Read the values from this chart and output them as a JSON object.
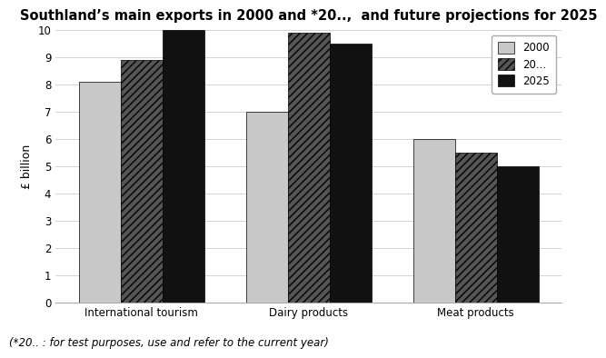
{
  "title": "Southland’s main exports in 2000 and *20..,  and future projections for 2025",
  "categories": [
    "International tourism",
    "Dairy products",
    "Meat products"
  ],
  "series": {
    "2000": [
      8.1,
      7.0,
      6.0
    ],
    "20...": [
      8.9,
      9.9,
      5.5
    ],
    "2025": [
      10.0,
      9.5,
      5.0
    ]
  },
  "legend_labels": [
    "2000",
    "20...",
    "2025"
  ],
  "ylabel": "£ billion",
  "ylim": [
    0,
    10
  ],
  "yticks": [
    0,
    1,
    2,
    3,
    4,
    5,
    6,
    7,
    8,
    9,
    10
  ],
  "footnote": "(*20.. : for test purposes, use and refer to the current year)",
  "bar_colors": [
    "#c8c8c8",
    "#555555",
    "#111111"
  ],
  "hatches": [
    "",
    "////",
    ""
  ],
  "background_color": "#ffffff",
  "title_fontsize": 10.5,
  "footnote_fontsize": 8.5
}
